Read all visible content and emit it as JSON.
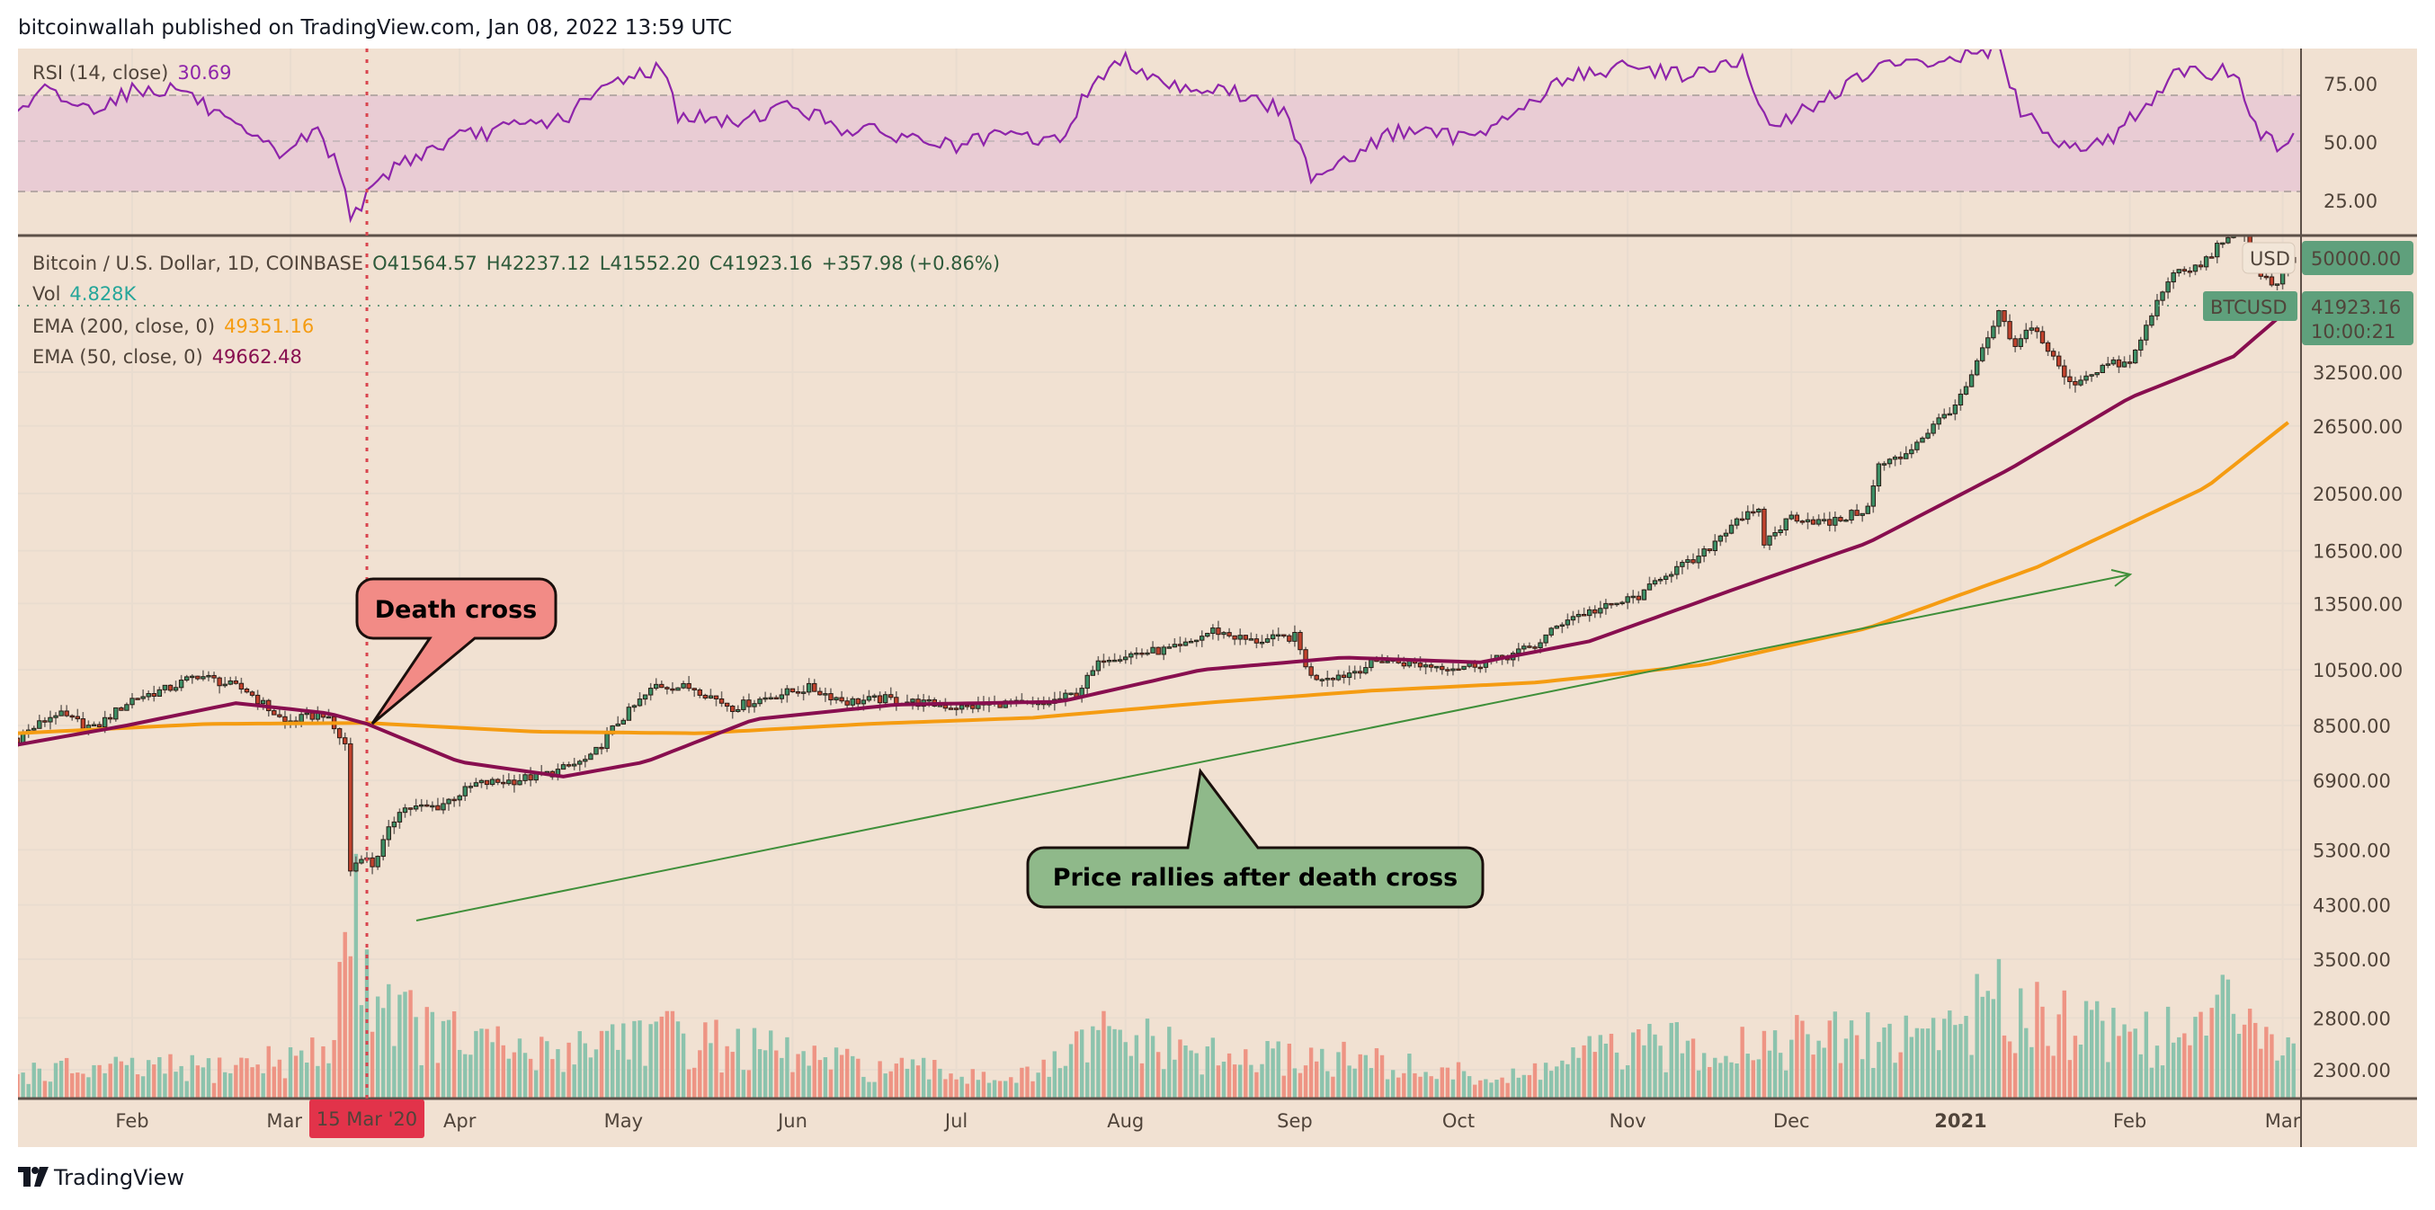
{
  "header": {
    "published": "bitcoinwallah published on TradingView.com, Jan 08, 2022 13:59 UTC"
  },
  "footer": {
    "brand": "TradingView"
  },
  "legend": {
    "rsi_label": "RSI (14, close)",
    "rsi_value": "30.69",
    "symbol": "Bitcoin / U.S. Dollar, 1D, COINBASE",
    "open": "O41564.57",
    "high": "H42237.12",
    "low": "L41552.20",
    "close": "C41923.16",
    "change": "+357.98 (+0.86%)",
    "vol_label": "Vol",
    "vol_value": "4.828K",
    "ema200_label": "EMA (200, close, 0)",
    "ema200_value": "49351.16",
    "ema50_label": "EMA (50, close, 0)",
    "ema50_value": "49662.48"
  },
  "badges": {
    "currency": "USD",
    "symbol": "BTCUSD",
    "last_price": "41923.16",
    "countdown": "10:00:21",
    "high_mark": "50000.00",
    "crosshair_date": "15 Mar '20"
  },
  "annotations": {
    "death_cross": "Death cross",
    "rally": "Price rallies after death cross"
  },
  "colors": {
    "bg": "#f1e1d2",
    "up": "#3d8f66",
    "down": "#c2432e",
    "vol_up": "#8cc3ad",
    "vol_down": "#ee9484",
    "ema200": "#f59c12",
    "ema50": "#880e4f",
    "rsi": "#8e24aa",
    "rsi_band": "#e9ccd4",
    "death_cross_fill": "#f28b86",
    "rally_fill": "#8fb98a",
    "trend": "#3f8f3a",
    "marker": "#e2334a"
  },
  "chart_data": {
    "type": "candlestick",
    "title": "Bitcoin / U.S. Dollar, 1D, COINBASE",
    "x_range": [
      "2020-01-11",
      "2021-03-03"
    ],
    "y_scale": "log",
    "rsi_axis": {
      "ticks": [
        "75.00",
        "50.00",
        "25.00"
      ],
      "band": [
        30,
        70
      ]
    },
    "price_axis": {
      "ticks": [
        "32500.00",
        "26500.00",
        "20500.00",
        "16500.00",
        "13500.00",
        "10500.00",
        "8500.00",
        "6900.00",
        "5300.00",
        "4300.00",
        "3500.00",
        "2800.00",
        "2300.00"
      ]
    },
    "time_axis": [
      {
        "label": "Feb",
        "date": "2020-02-01"
      },
      {
        "label": "Mar",
        "date": "2020-03-01"
      },
      {
        "label": "Apr",
        "date": "2020-04-01"
      },
      {
        "label": "May",
        "date": "2020-05-01"
      },
      {
        "label": "Jun",
        "date": "2020-06-01"
      },
      {
        "label": "Jul",
        "date": "2020-07-01"
      },
      {
        "label": "Aug",
        "date": "2020-08-01"
      },
      {
        "label": "Sep",
        "date": "2020-09-01"
      },
      {
        "label": "Oct",
        "date": "2020-10-01"
      },
      {
        "label": "Nov",
        "date": "2020-11-01"
      },
      {
        "label": "Dec",
        "date": "2020-12-01"
      },
      {
        "label": "2021",
        "date": "2021-01-01",
        "bold": true
      },
      {
        "label": "Feb",
        "date": "2021-02-01"
      },
      {
        "label": "Mar",
        "date": "2021-03-01"
      }
    ],
    "crosshair_date": "2020-03-15",
    "close_anchors": [
      [
        "2020-01-11",
        8100
      ],
      [
        "2020-01-18",
        8900
      ],
      [
        "2020-01-25",
        8400
      ],
      [
        "2020-02-01",
        9400
      ],
      [
        "2020-02-08",
        9800
      ],
      [
        "2020-02-13",
        10300
      ],
      [
        "2020-02-22",
        9700
      ],
      [
        "2020-02-29",
        8600
      ],
      [
        "2020-03-07",
        8900
      ],
      [
        "2020-03-11",
        7900
      ],
      [
        "2020-03-12",
        4900
      ],
      [
        "2020-03-14",
        5200
      ],
      [
        "2020-03-16",
        5000
      ],
      [
        "2020-03-21",
        6200
      ],
      [
        "2020-03-28",
        6250
      ],
      [
        "2020-04-04",
        6800
      ],
      [
        "2020-04-11",
        6900
      ],
      [
        "2020-04-18",
        7100
      ],
      [
        "2020-04-25",
        7500
      ],
      [
        "2020-04-30",
        8600
      ],
      [
        "2020-05-07",
        9900
      ],
      [
        "2020-05-14",
        9800
      ],
      [
        "2020-05-21",
        9100
      ],
      [
        "2020-05-28",
        9500
      ],
      [
        "2020-06-04",
        9800
      ],
      [
        "2020-06-11",
        9300
      ],
      [
        "2020-06-18",
        9400
      ],
      [
        "2020-06-25",
        9250
      ],
      [
        "2020-07-02",
        9100
      ],
      [
        "2020-07-09",
        9250
      ],
      [
        "2020-07-16",
        9150
      ],
      [
        "2020-07-23",
        9600
      ],
      [
        "2020-07-28",
        11000
      ],
      [
        "2020-08-04",
        11200
      ],
      [
        "2020-08-11",
        11400
      ],
      [
        "2020-08-17",
        12200
      ],
      [
        "2020-08-24",
        11700
      ],
      [
        "2020-09-01",
        11900
      ],
      [
        "2020-09-04",
        10200
      ],
      [
        "2020-09-10",
        10300
      ],
      [
        "2020-09-17",
        10900
      ],
      [
        "2020-09-24",
        10700
      ],
      [
        "2020-10-01",
        10600
      ],
      [
        "2020-10-08",
        10900
      ],
      [
        "2020-10-15",
        11500
      ],
      [
        "2020-10-21",
        12800
      ],
      [
        "2020-10-28",
        13300
      ],
      [
        "2020-11-04",
        14000
      ],
      [
        "2020-11-07",
        15000
      ],
      [
        "2020-11-14",
        16000
      ],
      [
        "2020-11-21",
        18700
      ],
      [
        "2020-11-25",
        19000
      ],
      [
        "2020-11-26",
        17000
      ],
      [
        "2020-12-01",
        18800
      ],
      [
        "2020-12-08",
        18300
      ],
      [
        "2020-12-15",
        19400
      ],
      [
        "2020-12-17",
        22800
      ],
      [
        "2020-12-21",
        23500
      ],
      [
        "2020-12-27",
        26500
      ],
      [
        "2021-01-01",
        29400
      ],
      [
        "2021-01-03",
        32000
      ],
      [
        "2021-01-08",
        40500
      ],
      [
        "2021-01-11",
        35500
      ],
      [
        "2021-01-14",
        39000
      ],
      [
        "2021-01-21",
        31000
      ],
      [
        "2021-01-25",
        32500
      ],
      [
        "2021-01-28",
        33500
      ],
      [
        "2021-02-01",
        33500
      ],
      [
        "2021-02-08",
        46500
      ],
      [
        "2021-02-14",
        48700
      ],
      [
        "2021-02-21",
        57500
      ],
      [
        "2021-02-22",
        54000
      ],
      [
        "2021-02-25",
        47000
      ],
      [
        "2021-02-28",
        45200
      ],
      [
        "2021-03-03",
        50500
      ]
    ],
    "ema200_anchors": [
      [
        "2020-01-11",
        8250
      ],
      [
        "2020-02-15",
        8550
      ],
      [
        "2020-03-15",
        8580
      ],
      [
        "2020-04-15",
        8300
      ],
      [
        "2020-05-15",
        8250
      ],
      [
        "2020-06-15",
        8550
      ],
      [
        "2020-07-15",
        8750
      ],
      [
        "2020-08-15",
        9250
      ],
      [
        "2020-09-15",
        9700
      ],
      [
        "2020-10-15",
        10000
      ],
      [
        "2020-11-15",
        10700
      ],
      [
        "2020-12-15",
        12300
      ],
      [
        "2021-01-15",
        15500
      ],
      [
        "2021-02-15",
        21000
      ],
      [
        "2021-03-03",
        27300
      ]
    ],
    "ema50_anchors": [
      [
        "2020-01-11",
        7900
      ],
      [
        "2020-01-31",
        8500
      ],
      [
        "2020-02-20",
        9250
      ],
      [
        "2020-03-08",
        8900
      ],
      [
        "2020-03-15",
        8550
      ],
      [
        "2020-04-01",
        7400
      ],
      [
        "2020-04-20",
        7000
      ],
      [
        "2020-05-05",
        7400
      ],
      [
        "2020-05-25",
        8700
      ],
      [
        "2020-06-20",
        9200
      ],
      [
        "2020-07-20",
        9300
      ],
      [
        "2020-08-15",
        10500
      ],
      [
        "2020-09-10",
        11000
      ],
      [
        "2020-10-05",
        10800
      ],
      [
        "2020-10-25",
        11700
      ],
      [
        "2020-11-20",
        14200
      ],
      [
        "2020-12-15",
        17000
      ],
      [
        "2021-01-10",
        22500
      ],
      [
        "2021-02-01",
        29500
      ],
      [
        "2021-02-20",
        34500
      ],
      [
        "2021-03-03",
        42000
      ]
    ],
    "rsi_anchors": [
      [
        "2020-01-11",
        62
      ],
      [
        "2020-01-16",
        72
      ],
      [
        "2020-01-24",
        64
      ],
      [
        "2020-02-01",
        72
      ],
      [
        "2020-02-10",
        73
      ],
      [
        "2020-02-20",
        55
      ],
      [
        "2020-02-28",
        45
      ],
      [
        "2020-03-06",
        55
      ],
      [
        "2020-03-10",
        38
      ],
      [
        "2020-03-12",
        20
      ],
      [
        "2020-03-15",
        26
      ],
      [
        "2020-03-20",
        40
      ],
      [
        "2020-04-01",
        52
      ],
      [
        "2020-04-10",
        56
      ],
      [
        "2020-04-20",
        60
      ],
      [
        "2020-04-30",
        77
      ],
      [
        "2020-05-08",
        82
      ],
      [
        "2020-05-11",
        62
      ],
      [
        "2020-05-20",
        58
      ],
      [
        "2020-06-01",
        66
      ],
      [
        "2020-06-10",
        56
      ],
      [
        "2020-06-20",
        53
      ],
      [
        "2020-07-01",
        48
      ],
      [
        "2020-07-10",
        53
      ],
      [
        "2020-07-20",
        50
      ],
      [
        "2020-07-26",
        76
      ],
      [
        "2020-08-01",
        85
      ],
      [
        "2020-08-10",
        74
      ],
      [
        "2020-08-20",
        72
      ],
      [
        "2020-08-30",
        63
      ],
      [
        "2020-09-04",
        36
      ],
      [
        "2020-09-12",
        45
      ],
      [
        "2020-09-20",
        55
      ],
      [
        "2020-10-01",
        52
      ],
      [
        "2020-10-10",
        60
      ],
      [
        "2020-10-21",
        78
      ],
      [
        "2020-11-01",
        82
      ],
      [
        "2020-11-12",
        79
      ],
      [
        "2020-11-22",
        84
      ],
      [
        "2020-11-27",
        55
      ],
      [
        "2020-12-05",
        66
      ],
      [
        "2020-12-17",
        82
      ],
      [
        "2020-12-27",
        84
      ],
      [
        "2021-01-08",
        90
      ],
      [
        "2021-01-12",
        62
      ],
      [
        "2021-01-21",
        48
      ],
      [
        "2021-01-29",
        52
      ],
      [
        "2021-02-09",
        78
      ],
      [
        "2021-02-20",
        81
      ],
      [
        "2021-02-25",
        52
      ],
      [
        "2021-03-01",
        48
      ],
      [
        "2021-03-03",
        56
      ]
    ],
    "volume_anchors": [
      [
        "2020-01-11",
        18
      ],
      [
        "2020-02-15",
        20
      ],
      [
        "2020-03-08",
        30
      ],
      [
        "2020-03-12",
        130
      ],
      [
        "2020-03-16",
        80
      ],
      [
        "2020-03-25",
        45
      ],
      [
        "2020-04-15",
        28
      ],
      [
        "2020-05-01",
        45
      ],
      [
        "2020-05-12",
        40
      ],
      [
        "2020-06-15",
        20
      ],
      [
        "2020-07-15",
        14
      ],
      [
        "2020-07-28",
        42
      ],
      [
        "2020-08-20",
        25
      ],
      [
        "2020-09-05",
        28
      ],
      [
        "2020-10-10",
        12
      ],
      [
        "2020-10-25",
        30
      ],
      [
        "2020-11-20",
        38
      ],
      [
        "2020-12-20",
        40
      ],
      [
        "2021-01-10",
        65
      ],
      [
        "2021-01-25",
        50
      ],
      [
        "2021-02-10",
        40
      ],
      [
        "2021-02-23",
        70
      ],
      [
        "2021-03-03",
        30
      ]
    ]
  }
}
